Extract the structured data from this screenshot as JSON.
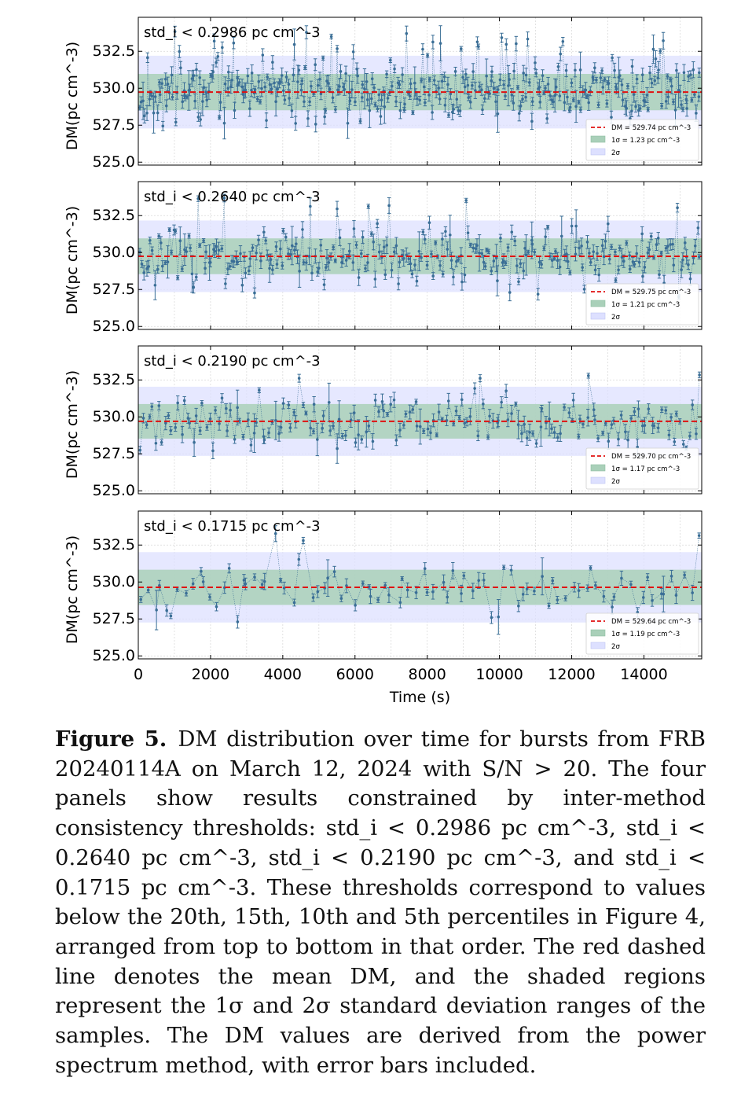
{
  "colors": {
    "data": "#3a6e96",
    "mean_line": "#e01010",
    "band_1sigma": "#a9d0b9",
    "band_2sigma": "#dde0ff"
  },
  "chart_data": [
    {
      "type": "scatter",
      "threshold_label": "std_i < 0.2986 pc cm^-3",
      "threshold_value": "0.2986",
      "mean": 529.74,
      "sigma": 1.23,
      "legend": [
        "DM = 529.74 pc cm^-3",
        "1σ = 1.23 pc cm^-3",
        "2σ"
      ],
      "ylabel": "DM(pc cm^-3)",
      "ylim": [
        524.8,
        534.8
      ],
      "yticks": [
        "525.0",
        "527.5",
        "530.0",
        "532.5"
      ],
      "xlim": [
        0,
        15600
      ],
      "n_points": 360,
      "seed": 11,
      "grid": true,
      "legend_position": "lower-right"
    },
    {
      "type": "scatter",
      "threshold_label": "std_i < 0.2640 pc cm^-3",
      "threshold_value": "0.2640",
      "mean": 529.75,
      "sigma": 1.21,
      "legend": [
        "DM = 529.75 pc cm^-3",
        "1σ = 1.21 pc cm^-3",
        "2σ"
      ],
      "ylabel": "DM(pc cm^-3)",
      "ylim": [
        524.8,
        534.8
      ],
      "yticks": [
        "525.0",
        "527.5",
        "530.0",
        "532.5"
      ],
      "xlim": [
        0,
        15600
      ],
      "n_points": 270,
      "seed": 23,
      "grid": true,
      "legend_position": "lower-right"
    },
    {
      "type": "scatter",
      "threshold_label": "std_i < 0.2190 pc cm^-3",
      "threshold_value": "0.2190",
      "mean": 529.7,
      "sigma": 1.17,
      "legend": [
        "DM = 529.70 pc cm^-3",
        "1σ = 1.17 pc cm^-3",
        "2σ"
      ],
      "ylabel": "DM(pc cm^-3)",
      "ylim": [
        524.8,
        534.8
      ],
      "yticks": [
        "525.0",
        "527.5",
        "530.0",
        "532.5"
      ],
      "xlim": [
        0,
        15600
      ],
      "n_points": 180,
      "seed": 37,
      "grid": true,
      "legend_position": "lower-right"
    },
    {
      "type": "scatter",
      "threshold_label": "std_i < 0.1715 pc cm^-3",
      "threshold_value": "0.1715",
      "mean": 529.64,
      "sigma": 1.19,
      "legend": [
        "DM = 529.64 pc cm^-3",
        "1σ = 1.19 pc cm^-3",
        "2σ"
      ],
      "ylabel": "DM(pc cm^-3)",
      "ylim": [
        524.8,
        534.8
      ],
      "yticks": [
        "525.0",
        "527.5",
        "530.0",
        "532.5"
      ],
      "xlim": [
        0,
        15600
      ],
      "xticks": [
        "0",
        "2000",
        "4000",
        "6000",
        "8000",
        "10000",
        "12000",
        "14000"
      ],
      "xlabel": "Time (s)",
      "n_points": 90,
      "seed": 53,
      "grid": true,
      "legend_position": "lower-right"
    }
  ],
  "caption": {
    "label": "Figure 5.",
    "text": "DM distribution over time for bursts from FRB 20240114A on March 12, 2024 with S/N > 20. The four panels show results constrained by inter-method consistency thresholds: std_i < 0.2986 pc cm^-3, std_i < 0.2640 pc cm^-3, std_i < 0.2190 pc cm^-3, and std_i < 0.1715 pc cm^-3. These thresholds correspond to values below the 20th, 15th, 10th and 5th percentiles in Figure 4, arranged from top to bottom in that order. The red dashed line denotes the mean DM, and the shaded regions represent the 1σ and 2σ standard deviation ranges of the samples. The DM values are derived from the power spectrum method, with error bars included."
  }
}
